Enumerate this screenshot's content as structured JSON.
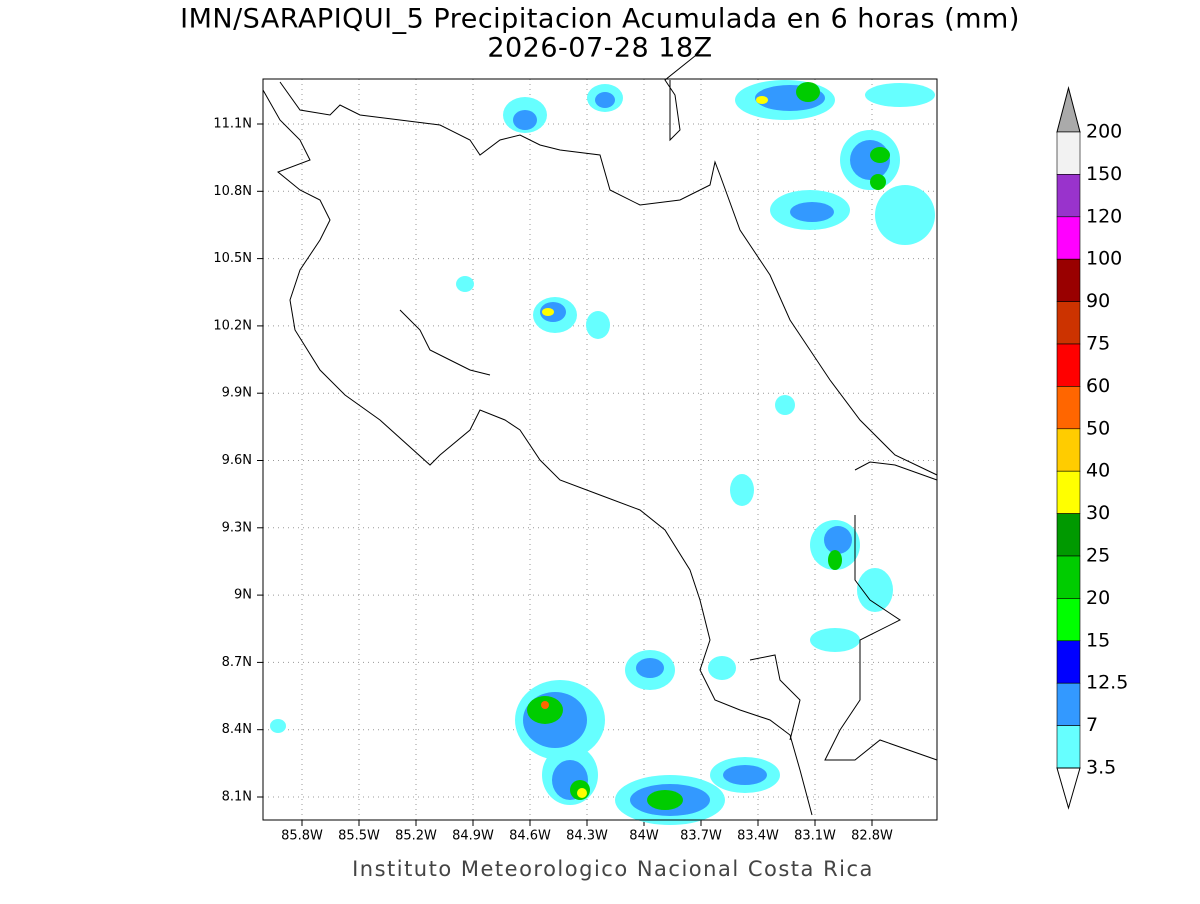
{
  "header": {
    "title": "IMN/SARAPIQUI_5 Precipitacion Acumulada en 6 horas (mm)",
    "subtitle": "2026-07-28 18Z"
  },
  "map": {
    "lon_labels": [
      "85.8W",
      "85.5W",
      "85.2W",
      "84.9W",
      "84.6W",
      "84.3W",
      "84W",
      "83.7W",
      "83.4W",
      "83.1W",
      "82.8W"
    ],
    "lat_labels": [
      "11.1N",
      "10.8N",
      "10.5N",
      "10.2N",
      "9.9N",
      "9.6N",
      "9.3N",
      "9N",
      "8.7N",
      "8.4N",
      "8.1N"
    ]
  },
  "colorbar": {
    "labels": [
      "200",
      "150",
      "120",
      "100",
      "90",
      "75",
      "60",
      "50",
      "40",
      "30",
      "25",
      "20",
      "15",
      "12.5",
      "7",
      "3.5"
    ],
    "colors": [
      "#f2f2f2",
      "#9933cc",
      "#ff00ff",
      "#990000",
      "#cc3300",
      "#ff0000",
      "#ff6600",
      "#ffcc00",
      "#ffff00",
      "#009900",
      "#00cc00",
      "#00ff00",
      "#0000ff",
      "#3399ff",
      "#66ffff"
    ],
    "over_color": "#aaaaaa",
    "under_color": "#ffffff"
  },
  "footer": "Instituto Meteorologico Nacional Costa Rica"
}
